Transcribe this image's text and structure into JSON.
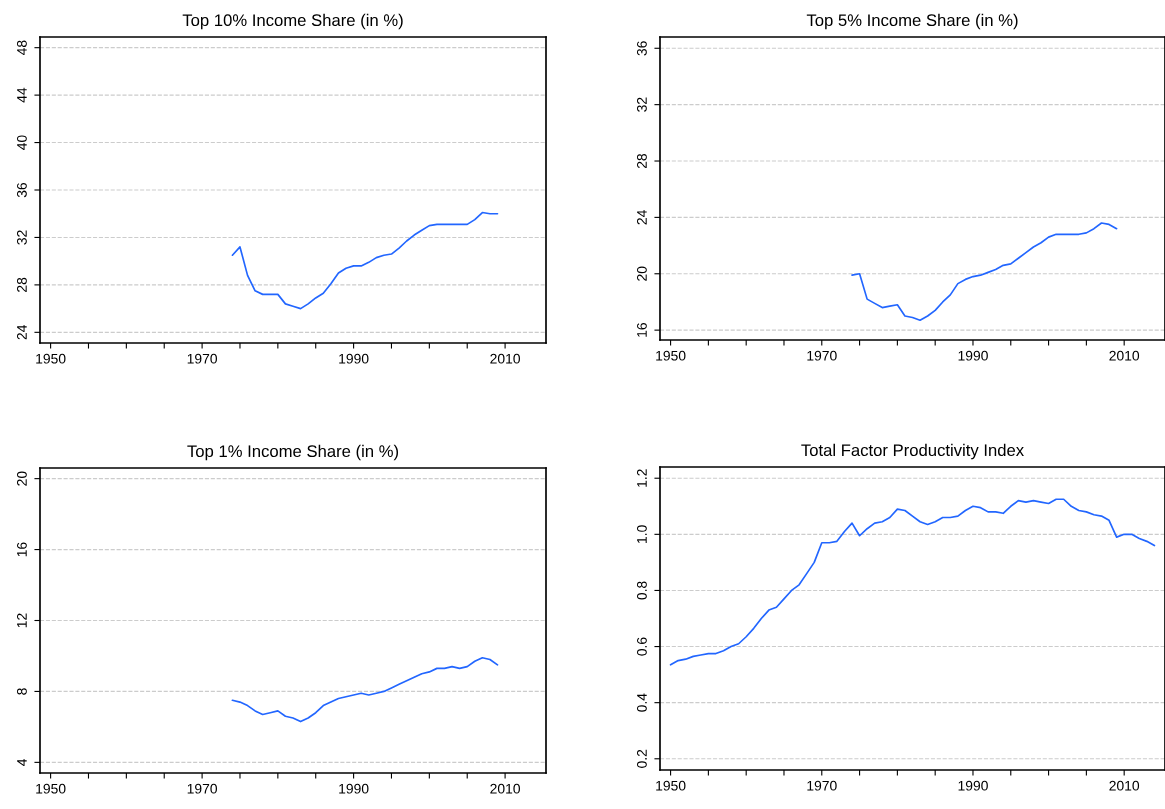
{
  "chart_data": [
    {
      "type": "line",
      "title": "Top 10% Income Share (in %)",
      "color": "#2266ff",
      "grid": "y",
      "x": [
        1974,
        1975,
        1976,
        1977,
        1978,
        1979,
        1980,
        1981,
        1982,
        1983,
        1984,
        1985,
        1986,
        1987,
        1988,
        1989,
        1990,
        1991,
        1992,
        1993,
        1994,
        1995,
        1996,
        1997,
        1998,
        1999,
        2000,
        2001,
        2002,
        2003,
        2004,
        2005,
        2006,
        2007,
        2008,
        2009
      ],
      "values": [
        30.5,
        31.2,
        28.8,
        27.5,
        27.2,
        27.2,
        27.2,
        26.4,
        26.2,
        26.0,
        26.4,
        26.9,
        27.3,
        28.1,
        29.0,
        29.4,
        29.6,
        29.6,
        29.9,
        30.3,
        30.5,
        30.6,
        31.1,
        31.7,
        32.2,
        32.6,
        33.0,
        33.1,
        33.1,
        33.1,
        33.1,
        33.1,
        33.5,
        34.1,
        34.0,
        34.0
      ],
      "xlim": [
        1948.6,
        2015.4
      ],
      "xticks": [
        1950,
        {
          "value": 1955,
          "label": null
        },
        {
          "value": 1960,
          "label": null
        },
        {
          "value": 1965,
          "label": null
        },
        1970,
        {
          "value": 1975,
          "label": null
        },
        {
          "value": 1980,
          "label": null
        },
        {
          "value": 1985,
          "label": null
        },
        1990,
        {
          "value": 1995,
          "label": null
        },
        {
          "value": 2000,
          "label": null
        },
        {
          "value": 2005,
          "label": null
        },
        2010
      ],
      "ylim": [
        23.1,
        48.9
      ],
      "yticks": [
        24,
        28,
        32,
        36,
        40,
        44,
        48
      ]
    },
    {
      "type": "line",
      "title": "Top 5% Income Share (in %)",
      "color": "#2266ff",
      "grid": "y",
      "x": [
        1974,
        1975,
        1976,
        1977,
        1978,
        1979,
        1980,
        1981,
        1982,
        1983,
        1984,
        1985,
        1986,
        1987,
        1988,
        1989,
        1990,
        1991,
        1992,
        1993,
        1994,
        1995,
        1996,
        1997,
        1998,
        1999,
        2000,
        2001,
        2002,
        2003,
        2004,
        2005,
        2006,
        2007,
        2008,
        2009
      ],
      "values": [
        19.9,
        20.0,
        18.2,
        17.9,
        17.6,
        17.7,
        17.8,
        17.0,
        16.9,
        16.7,
        17.0,
        17.4,
        18.0,
        18.5,
        19.3,
        19.6,
        19.8,
        19.9,
        20.1,
        20.3,
        20.6,
        20.7,
        21.1,
        21.5,
        21.9,
        22.2,
        22.6,
        22.8,
        22.8,
        22.8,
        22.8,
        22.9,
        23.2,
        23.6,
        23.5,
        23.2
      ],
      "xlim": [
        1948.6,
        2015.4
      ],
      "xticks": [
        1950,
        {
          "value": 1955,
          "label": null
        },
        {
          "value": 1960,
          "label": null
        },
        {
          "value": 1965,
          "label": null
        },
        1970,
        {
          "value": 1975,
          "label": null
        },
        {
          "value": 1980,
          "label": null
        },
        {
          "value": 1985,
          "label": null
        },
        1990,
        {
          "value": 1995,
          "label": null
        },
        {
          "value": 2000,
          "label": null
        },
        {
          "value": 2005,
          "label": null
        },
        2010
      ],
      "ylim": [
        15.3,
        36.8
      ],
      "yticks": [
        16,
        20,
        24,
        28,
        32,
        36
      ]
    },
    {
      "type": "line",
      "title": "Top 1% Income Share (in %)",
      "color": "#2266ff",
      "grid": "y",
      "x": [
        1974,
        1975,
        1976,
        1977,
        1978,
        1979,
        1980,
        1981,
        1982,
        1983,
        1984,
        1985,
        1986,
        1987,
        1988,
        1989,
        1990,
        1991,
        1992,
        1993,
        1994,
        1995,
        1996,
        1997,
        1998,
        1999,
        2000,
        2001,
        2002,
        2003,
        2004,
        2005,
        2006,
        2007,
        2008,
        2009
      ],
      "values": [
        7.5,
        7.4,
        7.2,
        6.9,
        6.7,
        6.8,
        6.9,
        6.6,
        6.5,
        6.3,
        6.5,
        6.8,
        7.2,
        7.4,
        7.6,
        7.7,
        7.8,
        7.9,
        7.8,
        7.9,
        8.0,
        8.2,
        8.4,
        8.6,
        8.8,
        9.0,
        9.1,
        9.3,
        9.3,
        9.4,
        9.3,
        9.4,
        9.7,
        9.9,
        9.8,
        9.5
      ],
      "xlim": [
        1948.6,
        2015.4
      ],
      "xticks": [
        1950,
        {
          "value": 1955,
          "label": null
        },
        {
          "value": 1960,
          "label": null
        },
        {
          "value": 1965,
          "label": null
        },
        1970,
        {
          "value": 1975,
          "label": null
        },
        {
          "value": 1980,
          "label": null
        },
        {
          "value": 1985,
          "label": null
        },
        1990,
        {
          "value": 1995,
          "label": null
        },
        {
          "value": 2000,
          "label": null
        },
        {
          "value": 2005,
          "label": null
        },
        2010
      ],
      "ylim": [
        3.4,
        20.6
      ],
      "yticks": [
        4,
        8,
        12,
        16,
        20
      ]
    },
    {
      "type": "line",
      "title": "Total Factor Productivity Index",
      "color": "#2266ff",
      "grid": "y",
      "x": [
        1950,
        1951,
        1952,
        1953,
        1954,
        1955,
        1956,
        1957,
        1958,
        1959,
        1960,
        1961,
        1962,
        1963,
        1964,
        1965,
        1966,
        1967,
        1968,
        1969,
        1970,
        1971,
        1972,
        1973,
        1974,
        1975,
        1976,
        1977,
        1978,
        1979,
        1980,
        1981,
        1982,
        1983,
        1984,
        1985,
        1986,
        1987,
        1988,
        1989,
        1990,
        1991,
        1992,
        1993,
        1994,
        1995,
        1996,
        1997,
        1998,
        1999,
        2000,
        2001,
        2002,
        2003,
        2004,
        2005,
        2006,
        2007,
        2008,
        2009,
        2010,
        2011,
        2012,
        2013,
        2014
      ],
      "values": [
        0.535,
        0.55,
        0.555,
        0.565,
        0.57,
        0.575,
        0.575,
        0.585,
        0.6,
        0.61,
        0.635,
        0.665,
        0.7,
        0.73,
        0.74,
        0.77,
        0.8,
        0.82,
        0.86,
        0.9,
        0.97,
        0.97,
        0.975,
        1.01,
        1.04,
        0.995,
        1.02,
        1.04,
        1.045,
        1.06,
        1.09,
        1.085,
        1.065,
        1.045,
        1.035,
        1.045,
        1.06,
        1.06,
        1.065,
        1.085,
        1.1,
        1.095,
        1.08,
        1.08,
        1.075,
        1.1,
        1.12,
        1.115,
        1.12,
        1.115,
        1.11,
        1.125,
        1.125,
        1.1,
        1.085,
        1.08,
        1.07,
        1.065,
        1.05,
        0.99,
        1.0,
        1.0,
        0.985,
        0.975,
        0.96
      ],
      "xlim": [
        1948.6,
        2015.4
      ],
      "xticks": [
        1950,
        {
          "value": 1955,
          "label": null
        },
        {
          "value": 1960,
          "label": null
        },
        {
          "value": 1965,
          "label": null
        },
        1970,
        {
          "value": 1975,
          "label": null
        },
        {
          "value": 1980,
          "label": null
        },
        {
          "value": 1985,
          "label": null
        },
        1990,
        {
          "value": 1995,
          "label": null
        },
        {
          "value": 2000,
          "label": null
        },
        {
          "value": 2005,
          "label": null
        },
        2010
      ],
      "ylim": [
        0.16,
        1.24
      ],
      "yticks": [
        0.2,
        0.4,
        0.6,
        0.8,
        {
          "value": 1,
          "label": "1.0"
        },
        1.2
      ]
    }
  ]
}
